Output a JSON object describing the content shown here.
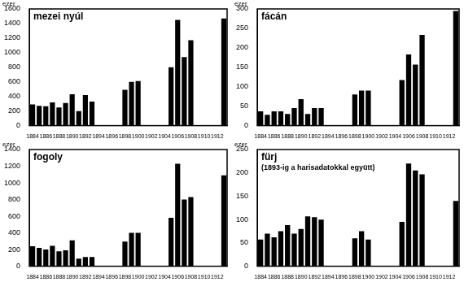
{
  "chart_data": [
    {
      "type": "bar",
      "title": "mezei nyúl",
      "y_label": "ezer",
      "categories": [
        "1884",
        null,
        "1886",
        null,
        "1888",
        null,
        "1890",
        null,
        "1892",
        null,
        "1894",
        null,
        "1896",
        null,
        "1898",
        null,
        "1900",
        null,
        "1902",
        null,
        "1904",
        null,
        "1906",
        null,
        "1908",
        null,
        "1910",
        null,
        "1912",
        null
      ],
      "values": [
        290,
        270,
        265,
        320,
        250,
        310,
        430,
        200,
        420,
        330,
        null,
        null,
        null,
        null,
        490,
        600,
        610,
        null,
        null,
        null,
        null,
        800,
        1450,
        940,
        1170,
        null,
        null,
        null,
        null,
        1470
      ],
      "color": "#000000",
      "ylim": [
        0,
        1600
      ],
      "yticks": [
        0,
        200,
        400,
        600,
        800,
        1000,
        1200,
        1400,
        1600
      ],
      "grid": false
    },
    {
      "type": "bar",
      "title": "fácán",
      "y_label": "ezer",
      "categories": [
        "1884",
        null,
        "1886",
        null,
        "1888",
        null,
        "1890",
        null,
        "1892",
        null,
        "1894",
        null,
        "1896",
        null,
        "1898",
        null,
        "1900",
        null,
        "1902",
        null,
        "1904",
        null,
        "1906",
        null,
        "1908",
        null,
        "1910",
        null,
        "1912",
        null
      ],
      "values": [
        37,
        28,
        37,
        37,
        30,
        45,
        68,
        30,
        45,
        45,
        null,
        null,
        null,
        null,
        80,
        90,
        90,
        null,
        null,
        null,
        null,
        117,
        183,
        157,
        233,
        null,
        null,
        null,
        null,
        295
      ],
      "color": "#000000",
      "ylim": [
        0,
        300
      ],
      "yticks": [
        0,
        50,
        100,
        150,
        200,
        250,
        300
      ],
      "grid": false
    },
    {
      "type": "bar",
      "title": "fogoly",
      "y_label": "ezer",
      "categories": [
        "1884",
        null,
        "1886",
        null,
        "1888",
        null,
        "1890",
        null,
        "1892",
        null,
        "1894",
        null,
        "1896",
        null,
        "1898",
        null,
        "1900",
        null,
        "1902",
        null,
        "1904",
        null,
        "1906",
        null,
        "1908",
        null,
        "1910",
        null,
        "1912",
        null
      ],
      "values": [
        240,
        220,
        200,
        245,
        180,
        190,
        310,
        90,
        110,
        110,
        null,
        null,
        null,
        null,
        295,
        400,
        400,
        null,
        null,
        null,
        null,
        580,
        1230,
        800,
        830,
        null,
        null,
        null,
        null,
        1090
      ],
      "color": "#000000",
      "ylim": [
        0,
        1400
      ],
      "yticks": [
        0,
        200,
        400,
        600,
        800,
        1000,
        1200,
        1400
      ],
      "grid": false
    },
    {
      "type": "bar",
      "title": "fürj",
      "subtitle": "(1893-ig a harisadatokkal együtt)",
      "y_label": "ezer",
      "categories": [
        "1884",
        null,
        "1886",
        null,
        "1888",
        null,
        "1890",
        null,
        "1892",
        null,
        "1894",
        null,
        "1896",
        null,
        "1898",
        null,
        "1900",
        null,
        "1902",
        null,
        "1904",
        null,
        "1906",
        null,
        "1908",
        null,
        "1910",
        null,
        "1912",
        null
      ],
      "values": [
        57,
        70,
        62,
        75,
        88,
        70,
        80,
        107,
        105,
        100,
        null,
        null,
        null,
        null,
        60,
        75,
        57,
        null,
        null,
        null,
        null,
        95,
        220,
        205,
        197,
        null,
        null,
        null,
        null,
        140
      ],
      "color": "#000000",
      "ylim": [
        0,
        250
      ],
      "yticks": [
        0,
        50,
        100,
        150,
        200,
        250
      ],
      "grid": false
    }
  ]
}
